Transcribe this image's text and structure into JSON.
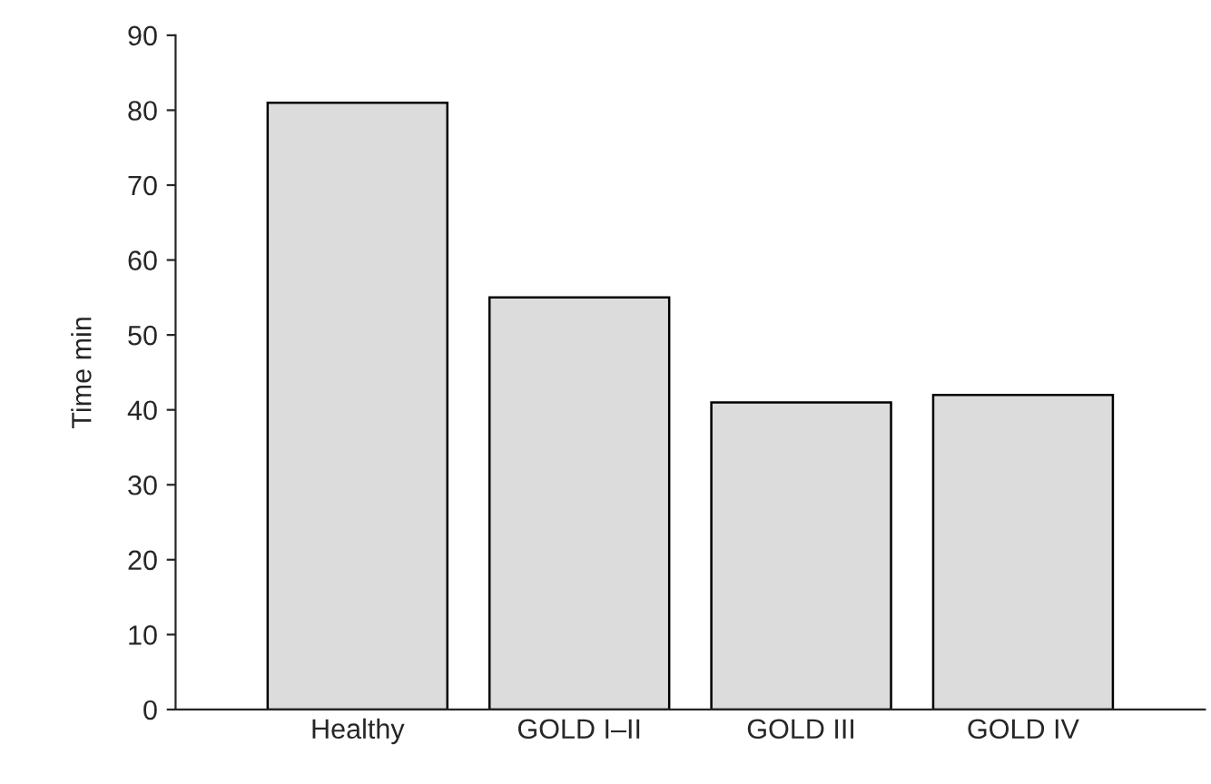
{
  "chart_data": {
    "type": "bar",
    "ylabel": "Time min",
    "categories": [
      "Healthy",
      "GOLD I–II",
      "GOLD III",
      "GOLD IV"
    ],
    "values": [
      81,
      55,
      41,
      42
    ],
    "color": "#dcdcdc",
    "ylim": [
      0,
      90
    ],
    "yticks": [
      0,
      10,
      20,
      30,
      40,
      50,
      60,
      70,
      80,
      90
    ],
    "grid": false,
    "legend": false
  }
}
